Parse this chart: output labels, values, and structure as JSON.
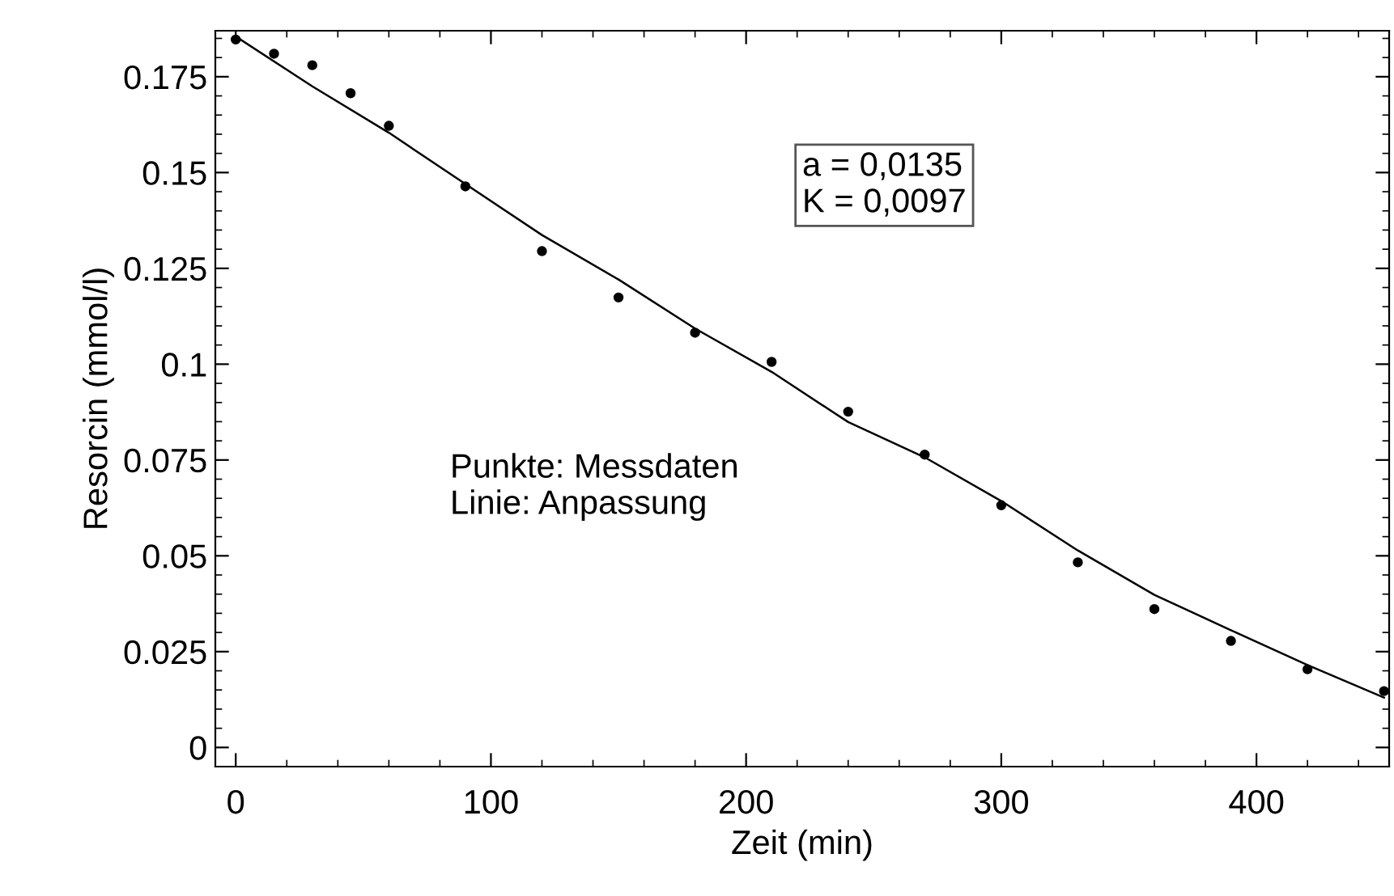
{
  "chart_data": {
    "type": "scatter",
    "xlabel": "Zeit (min)",
    "ylabel": "Resorcin (mmol/l)",
    "xlim": [
      -8,
      452
    ],
    "ylim": [
      -0.005,
      0.187
    ],
    "xticks": [
      0,
      100,
      200,
      300,
      400
    ],
    "yticks": [
      0,
      0.025,
      0.05,
      0.075,
      0.1,
      0.125,
      0.15,
      0.175
    ],
    "grid": false,
    "legend": false,
    "annotations": [
      "a = 0,0135\nK = 0,0097",
      "Punkte: Messdaten\nLinie: Anpassung"
    ],
    "series": [
      {
        "marker": "circle",
        "color": "#000000",
        "x": [
          0,
          15,
          30,
          45,
          60,
          90,
          120,
          150,
          180,
          210,
          240,
          270,
          300,
          330,
          360,
          390,
          420,
          450
        ],
        "values": [
          0.1847,
          0.181,
          0.178,
          0.1707,
          0.1622,
          0.1464,
          0.1295,
          0.1174,
          0.1082,
          0.1006,
          0.0876,
          0.0764,
          0.0632,
          0.0483,
          0.0361,
          0.0278,
          0.0204,
          0.0147
        ]
      },
      {
        "type": "line",
        "marker": "none",
        "line_style": "solid",
        "color": "#000000",
        "x": [
          0,
          30,
          60,
          90,
          120,
          150,
          180,
          210,
          240,
          270,
          300,
          330,
          360,
          390,
          420,
          450
        ],
        "values": [
          0.1855,
          0.1725,
          0.1604,
          0.147,
          0.1337,
          0.1221,
          0.1093,
          0.098,
          0.0849,
          0.0757,
          0.0643,
          0.0514,
          0.0398,
          0.0306,
          0.0215,
          0.013
        ]
      }
    ]
  }
}
